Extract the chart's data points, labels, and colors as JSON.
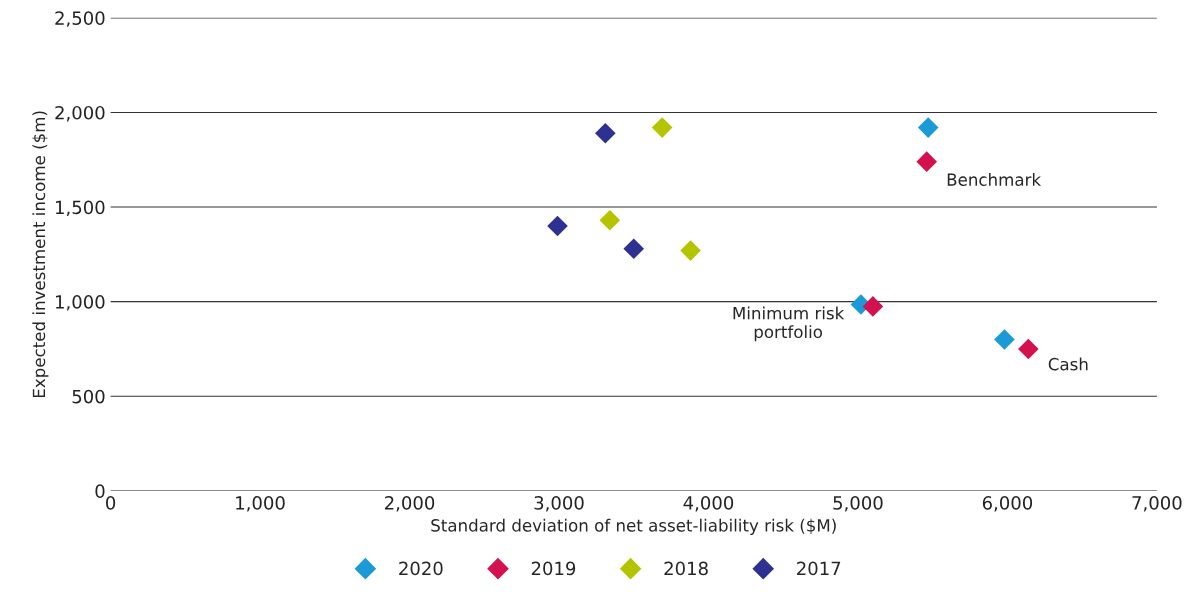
{
  "chart_data": {
    "type": "scatter",
    "xlabel": "Standard deviation of net asset-liability risk ($M)",
    "ylabel": "Expected investment income ($m)",
    "series": [
      {
        "name": "2020",
        "color": "#1a9bd7",
        "x": [
          5470,
          5020,
          5980
        ],
        "values": [
          1920,
          985,
          800
        ]
      },
      {
        "name": "2019",
        "color": "#d4114f",
        "x": [
          5460,
          5100,
          6140
        ],
        "values": [
          1740,
          975,
          750
        ]
      },
      {
        "name": "2018",
        "color": "#b5c400",
        "x": [
          3690,
          3340,
          3880
        ],
        "values": [
          1920,
          1430,
          1270
        ]
      },
      {
        "name": "2017",
        "color": "#2e3192",
        "x": [
          3310,
          2990,
          3500
        ],
        "values": [
          1890,
          1400,
          1280
        ]
      }
    ],
    "annotations": [
      {
        "text": "Benchmark",
        "x": 5460,
        "y": 1740
      },
      {
        "text": "Minimum risk\nportfolio",
        "x": 5020,
        "y": 985
      },
      {
        "text": "Cash",
        "x": 6140,
        "y": 750
      }
    ],
    "xlim": [
      0,
      7000
    ],
    "xticks": [
      {
        "value": 0,
        "label": "0"
      },
      {
        "value": 1000,
        "label": "1,000"
      },
      {
        "value": 2000,
        "label": "2,000"
      },
      {
        "value": 3000,
        "label": "3,000"
      },
      {
        "value": 4000,
        "label": "4,000"
      },
      {
        "value": 5000,
        "label": "5,000"
      },
      {
        "value": 6000,
        "label": "6,000"
      },
      {
        "value": 7000,
        "label": "7,000"
      }
    ],
    "ylim": [
      0,
      2500
    ],
    "yticks": [
      {
        "value": 0,
        "label": "0"
      },
      {
        "value": 500,
        "label": "500"
      },
      {
        "value": 1000,
        "label": "1,000"
      },
      {
        "value": 1500,
        "label": "1,500"
      },
      {
        "value": 2000,
        "label": "2,000"
      },
      {
        "value": 2500,
        "label": "2,500"
      }
    ],
    "grid": "y",
    "legend": "bottom",
    "marker": "diamond"
  }
}
